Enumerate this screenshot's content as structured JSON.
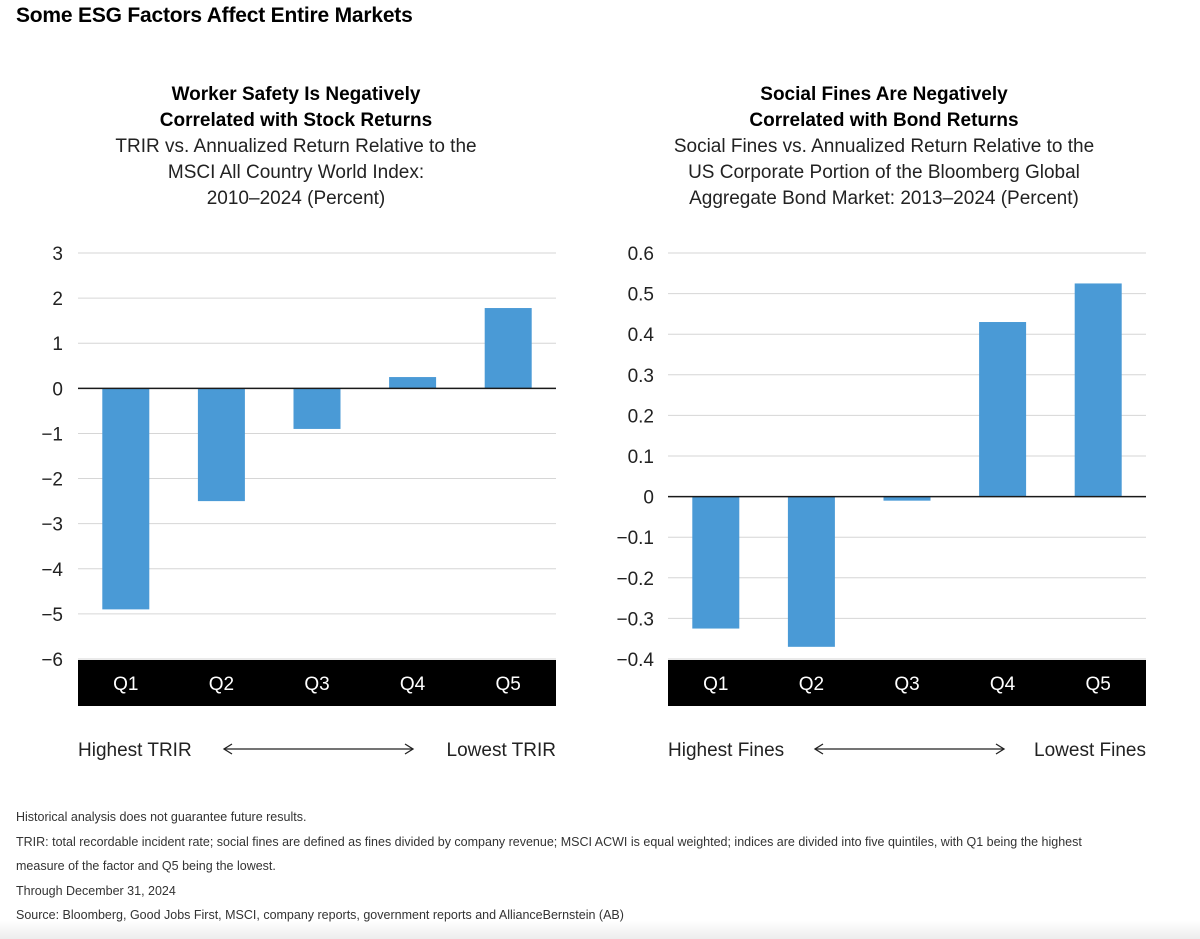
{
  "page_title": "Some ESG Factors Affect Entire Markets",
  "chart_data": [
    {
      "type": "bar",
      "title_lines": [
        "Worker Safety Is Negatively",
        "Correlated with Stock Returns"
      ],
      "subtitle_lines": [
        "TRIR vs. Annualized Return Relative to the",
        "MSCI All Country World Index:",
        "2010–2024 (Percent)"
      ],
      "categories": [
        "Q1",
        "Q2",
        "Q3",
        "Q4",
        "Q5"
      ],
      "values": [
        -4.9,
        -2.5,
        -0.9,
        0.25,
        1.78
      ],
      "ylim": [
        -6,
        3
      ],
      "ytick_values": [
        3,
        2,
        1,
        0,
        -1,
        -2,
        -3,
        -4,
        -5,
        -6
      ],
      "ytick_labels": [
        "3",
        "2",
        "1",
        "0",
        "−1",
        "−2",
        "−3",
        "−4",
        "−5",
        "−6"
      ],
      "xlabel": "",
      "ylabel": "",
      "left_label": "Highest TRIR",
      "right_label": "Lowest TRIR",
      "grid": true
    },
    {
      "type": "bar",
      "title_lines": [
        "Social Fines Are Negatively",
        "Correlated with Bond Returns"
      ],
      "subtitle_lines": [
        "Social Fines vs. Annualized Return Relative to the",
        "US Corporate Portion of the Bloomberg Global",
        "Aggregate Bond Market: 2013–2024 (Percent)"
      ],
      "categories": [
        "Q1",
        "Q2",
        "Q3",
        "Q4",
        "Q5"
      ],
      "values": [
        -0.325,
        -0.37,
        -0.01,
        0.43,
        0.525
      ],
      "ylim": [
        -0.4,
        0.6
      ],
      "ytick_values": [
        0.6,
        0.5,
        0.4,
        0.3,
        0.2,
        0.1,
        0,
        -0.1,
        -0.2,
        -0.3,
        -0.4
      ],
      "ytick_labels": [
        "0.6",
        "0.5",
        "0.4",
        "0.3",
        "0.2",
        "0.1",
        "0",
        "−0.1",
        "−0.2",
        "−0.3",
        "−0.4"
      ],
      "xlabel": "",
      "ylabel": "",
      "left_label": "Highest Fines",
      "right_label": "Lowest Fines",
      "grid": true
    }
  ],
  "colors": {
    "bar": "#4a9ad6",
    "category_band": "#000000",
    "category_text": "#ffffff",
    "grid": "#d6d6d6",
    "zero_line": "#1a1a1a"
  },
  "footnotes": [
    "Historical analysis does not guarantee future results.",
    "TRIR: total recordable incident rate; social fines are defined as fines divided by company revenue; MSCI ACWI is equal weighted; indices are divided into five quintiles, with Q1 being the highest",
    "measure of the factor and Q5 being the lowest.",
    "Through December 31, 2024",
    "Source: Bloomberg, Good Jobs First, MSCI, company reports, government reports and AllianceBernstein (AB)"
  ]
}
